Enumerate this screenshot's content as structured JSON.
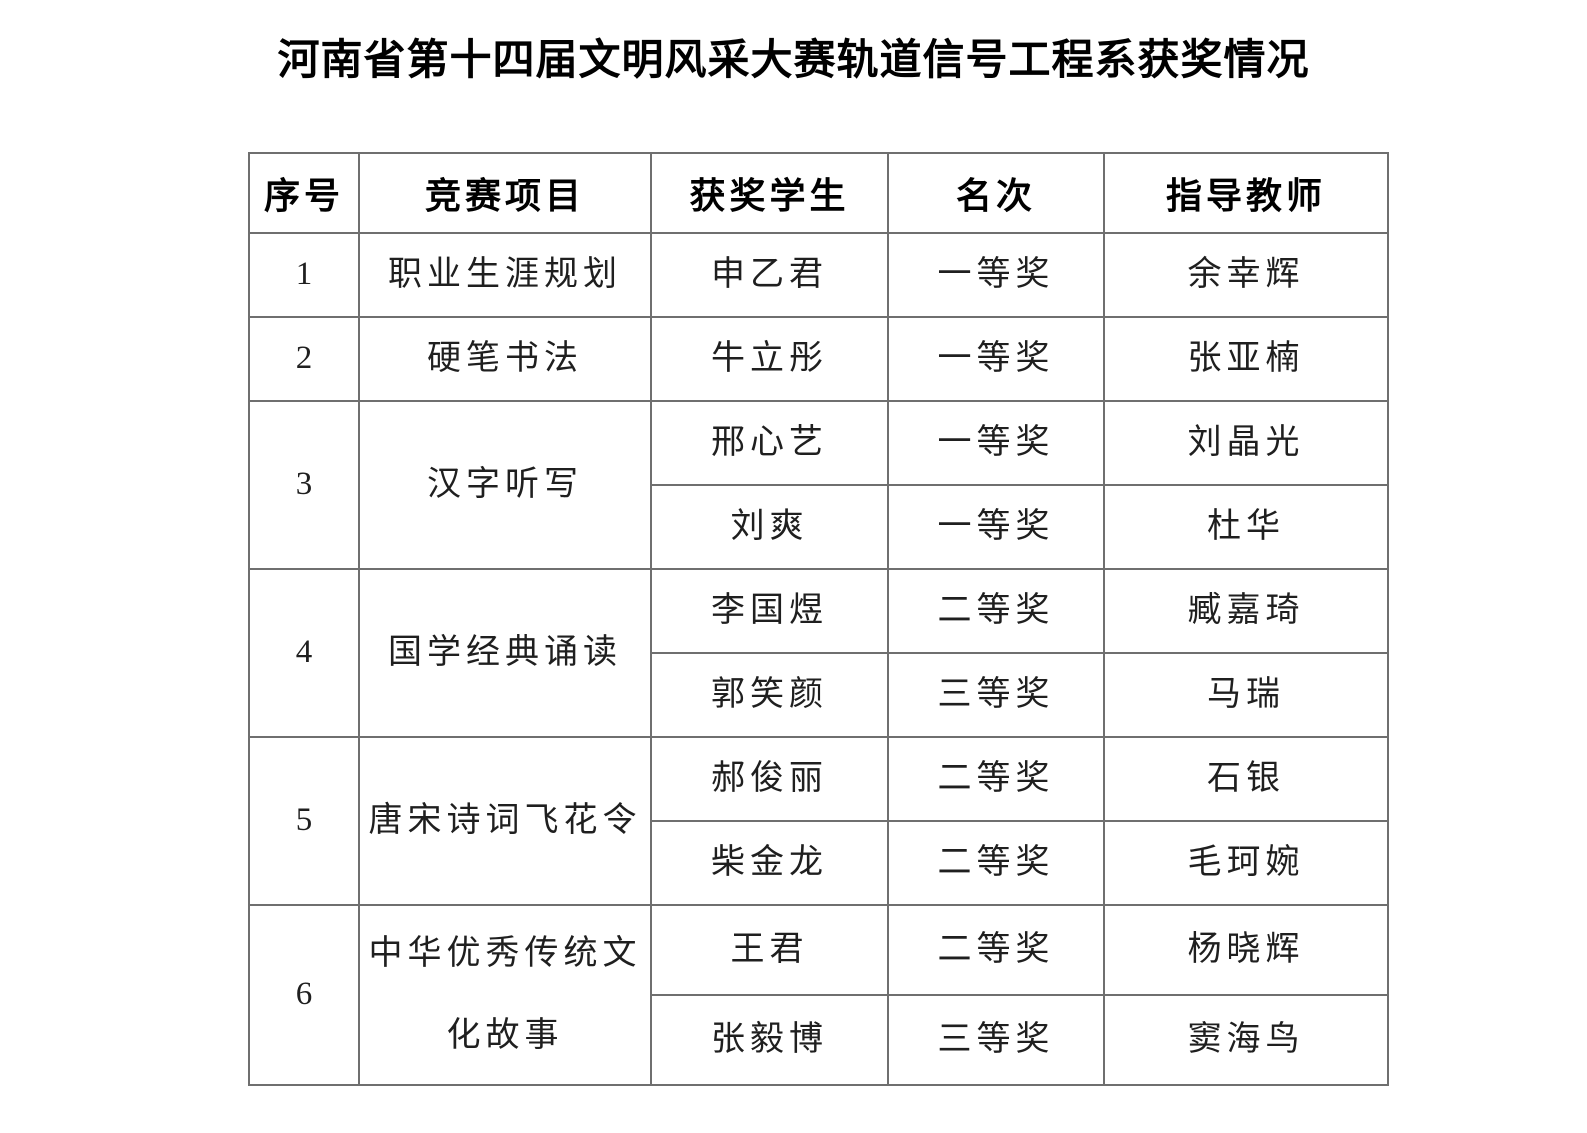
{
  "title": "河南省第十四届文明风采大赛轨道信号工程系获奖情况",
  "table": {
    "headers": [
      "序号",
      "竞赛项目",
      "获奖学生",
      "名次",
      "指导教师"
    ],
    "groups": [
      {
        "no": "1",
        "project": "职业生涯规划",
        "entries": [
          {
            "student": "申乙君",
            "rank": "一等奖",
            "teacher": "余幸辉"
          }
        ]
      },
      {
        "no": "2",
        "project": "硬笔书法",
        "entries": [
          {
            "student": "牛立彤",
            "rank": "一等奖",
            "teacher": "张亚楠"
          }
        ]
      },
      {
        "no": "3",
        "project": "汉字听写",
        "entries": [
          {
            "student": "邢心艺",
            "rank": "一等奖",
            "teacher": "刘晶光"
          },
          {
            "student": "刘爽",
            "rank": "一等奖",
            "teacher": "杜华"
          }
        ]
      },
      {
        "no": "4",
        "project": "国学经典诵读",
        "entries": [
          {
            "student": "李国煜",
            "rank": "二等奖",
            "teacher": "臧嘉琦"
          },
          {
            "student": "郭笑颜",
            "rank": "三等奖",
            "teacher": "马瑞"
          }
        ]
      },
      {
        "no": "5",
        "project": "唐宋诗词飞花令",
        "entries": [
          {
            "student": "郝俊丽",
            "rank": "二等奖",
            "teacher": "石银"
          },
          {
            "student": "柴金龙",
            "rank": "二等奖",
            "teacher": "毛珂婉"
          }
        ]
      },
      {
        "no": "6",
        "project": "中华优秀传统文化故事",
        "entries": [
          {
            "student": "王君",
            "rank": "二等奖",
            "teacher": "杨晓辉"
          },
          {
            "student": "张毅博",
            "rank": "三等奖",
            "teacher": "窦海鸟"
          }
        ]
      }
    ]
  }
}
